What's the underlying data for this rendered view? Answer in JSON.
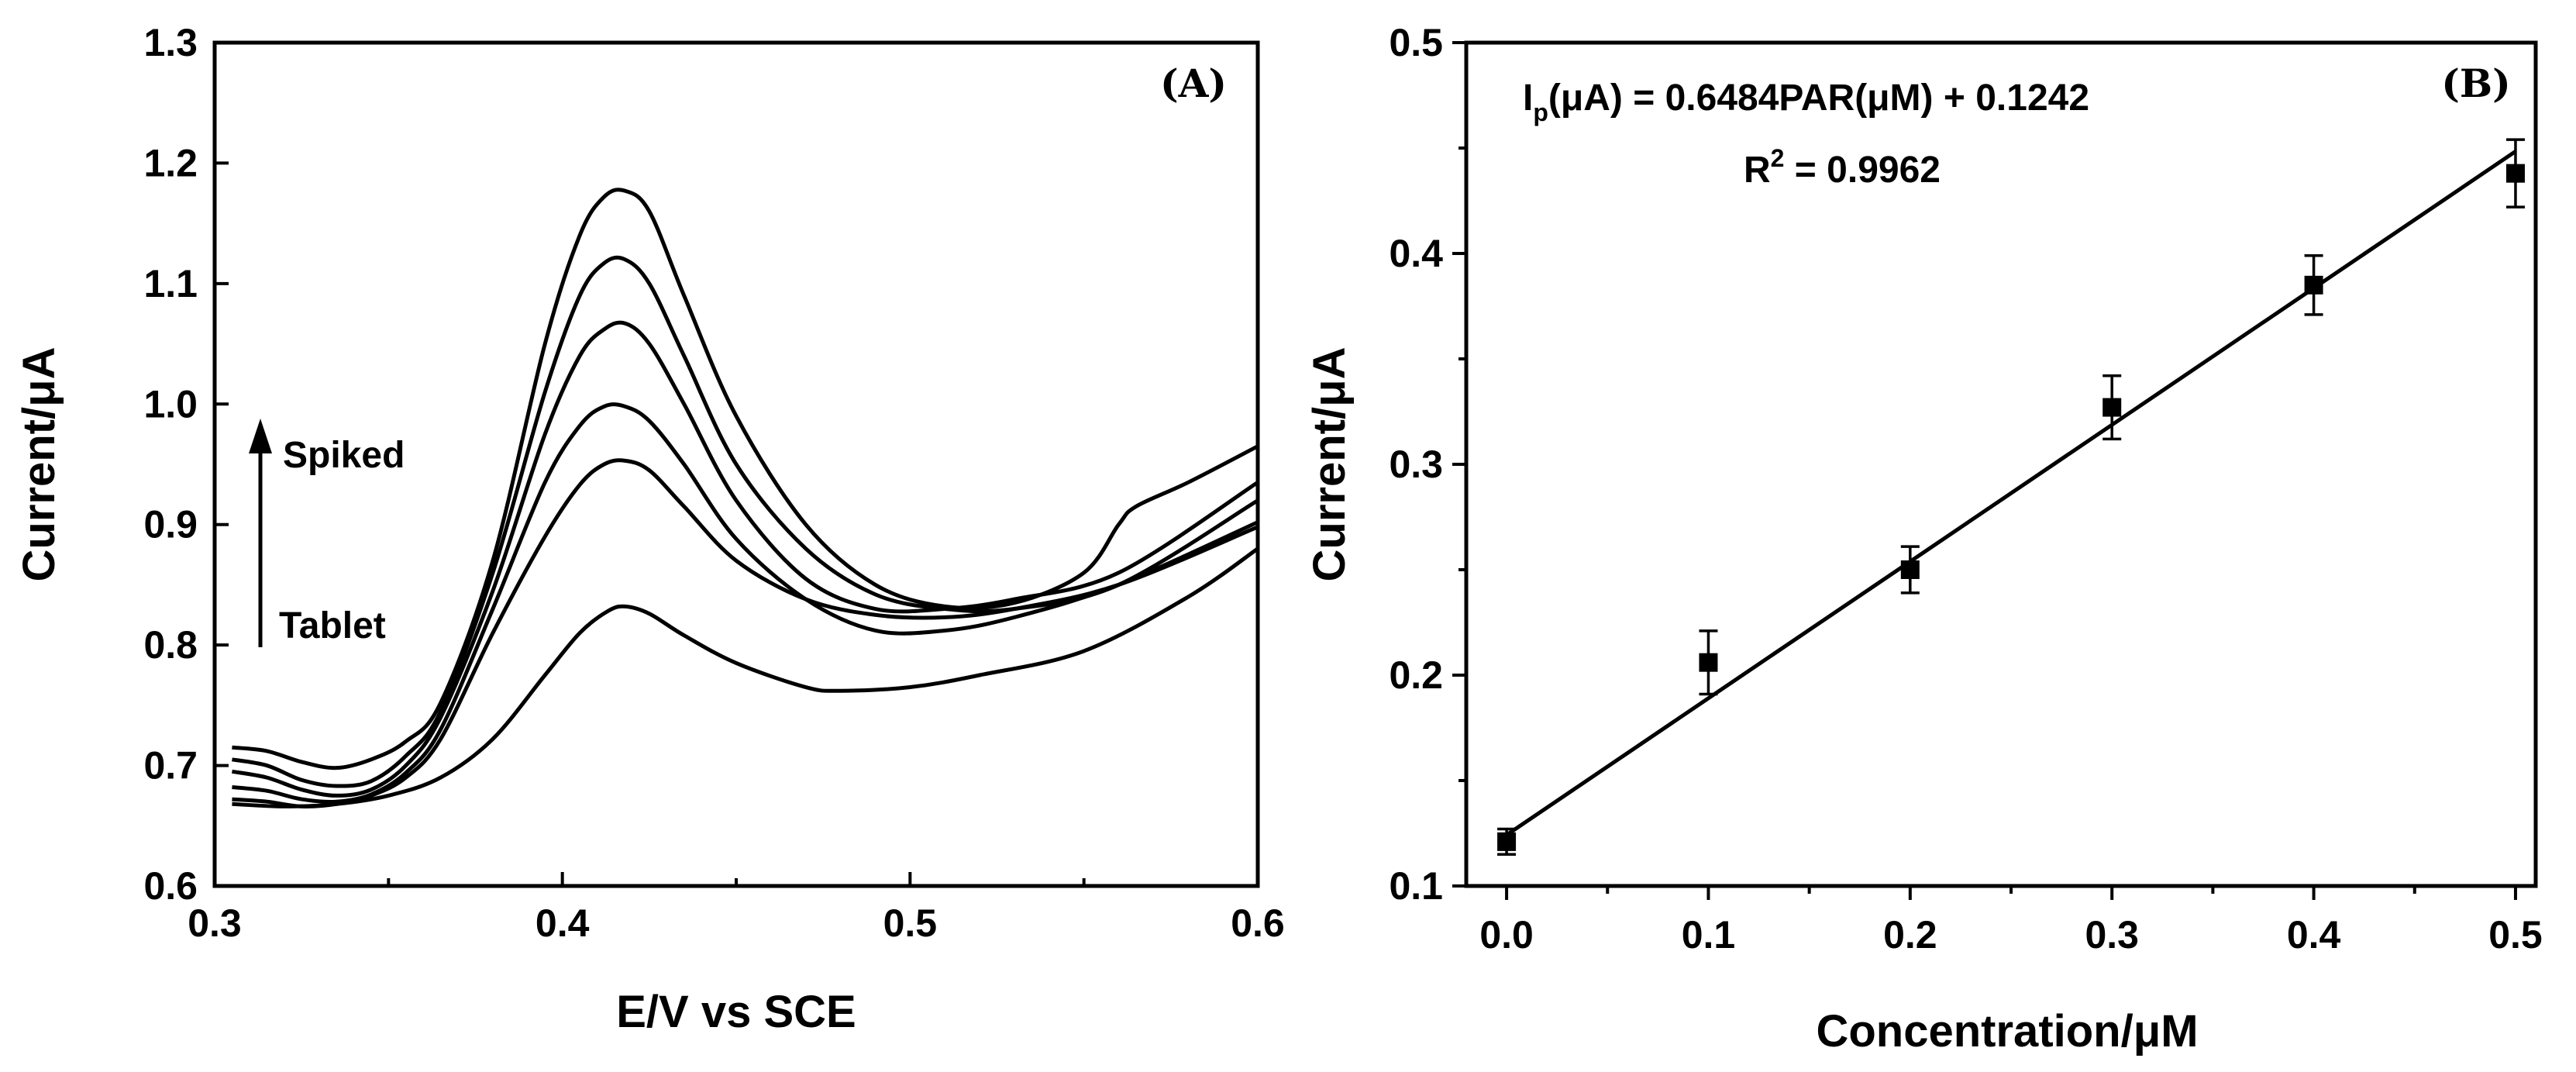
{
  "chart_data": [
    {
      "type": "line",
      "panel_label": "(A)",
      "xlabel": "E/V vs SCE",
      "ylabel": "Current/μA",
      "xlim": [
        0.3,
        0.6
      ],
      "ylim": [
        0.6,
        1.3
      ],
      "xticks": [
        "0.3",
        "0.4",
        "0.5",
        "0.6"
      ],
      "yticks": [
        "0.6",
        "0.7",
        "0.8",
        "0.9",
        "1.0",
        "1.1",
        "1.2",
        "1.3"
      ],
      "annotations": {
        "top": "Spiked",
        "bottom": "Tablet"
      },
      "series": [
        {
          "name": "Tablet",
          "x": [
            0.305,
            0.32,
            0.335,
            0.35,
            0.365,
            0.38,
            0.395,
            0.405,
            0.413,
            0.418,
            0.425,
            0.435,
            0.45,
            0.47,
            0.48,
            0.5,
            0.52,
            0.55,
            0.58,
            0.6
          ],
          "y": [
            0.668,
            0.666,
            0.668,
            0.675,
            0.69,
            0.722,
            0.775,
            0.81,
            0.828,
            0.832,
            0.826,
            0.808,
            0.785,
            0.765,
            0.762,
            0.765,
            0.775,
            0.795,
            0.84,
            0.88
          ]
        },
        {
          "name": "Spiked 1",
          "x": [
            0.305,
            0.315,
            0.325,
            0.335,
            0.345,
            0.355,
            0.365,
            0.38,
            0.395,
            0.405,
            0.412,
            0.418,
            0.425,
            0.435,
            0.45,
            0.47,
            0.49,
            0.51,
            0.53,
            0.56,
            0.6
          ],
          "y": [
            0.672,
            0.67,
            0.666,
            0.668,
            0.675,
            0.69,
            0.722,
            0.81,
            0.89,
            0.933,
            0.95,
            0.953,
            0.945,
            0.915,
            0.87,
            0.838,
            0.825,
            0.823,
            0.83,
            0.85,
            0.898
          ]
        },
        {
          "name": "Spiked 2",
          "x": [
            0.305,
            0.315,
            0.325,
            0.335,
            0.345,
            0.355,
            0.365,
            0.38,
            0.395,
            0.405,
            0.412,
            0.418,
            0.425,
            0.435,
            0.45,
            0.47,
            0.49,
            0.51,
            0.53,
            0.56,
            0.6
          ],
          "y": [
            0.682,
            0.679,
            0.672,
            0.67,
            0.676,
            0.694,
            0.73,
            0.83,
            0.935,
            0.982,
            0.998,
            0.998,
            0.986,
            0.95,
            0.888,
            0.838,
            0.812,
            0.812,
            0.823,
            0.85,
            0.902
          ]
        },
        {
          "name": "Spiked 3",
          "x": [
            0.305,
            0.315,
            0.325,
            0.335,
            0.345,
            0.355,
            0.365,
            0.38,
            0.395,
            0.405,
            0.412,
            0.418,
            0.425,
            0.435,
            0.45,
            0.47,
            0.49,
            0.51,
            0.53,
            0.56,
            0.6
          ],
          "y": [
            0.695,
            0.69,
            0.68,
            0.675,
            0.68,
            0.7,
            0.74,
            0.845,
            0.975,
            1.04,
            1.062,
            1.067,
            1.05,
            1.0,
            0.92,
            0.855,
            0.83,
            0.83,
            0.838,
            0.86,
            0.935
          ]
        },
        {
          "name": "Spiked 4",
          "x": [
            0.305,
            0.315,
            0.325,
            0.335,
            0.345,
            0.355,
            0.365,
            0.38,
            0.395,
            0.405,
            0.412,
            0.418,
            0.425,
            0.435,
            0.45,
            0.47,
            0.49,
            0.51,
            0.53,
            0.56,
            0.6
          ],
          "y": [
            0.705,
            0.7,
            0.688,
            0.683,
            0.687,
            0.708,
            0.745,
            0.86,
            1.01,
            1.09,
            1.117,
            1.12,
            1.1,
            1.04,
            0.95,
            0.88,
            0.842,
            0.83,
            0.83,
            0.85,
            0.92
          ]
        },
        {
          "name": "Spiked 5",
          "x": [
            0.305,
            0.315,
            0.325,
            0.335,
            0.345,
            0.355,
            0.365,
            0.38,
            0.395,
            0.405,
            0.412,
            0.418,
            0.425,
            0.435,
            0.45,
            0.47,
            0.49,
            0.51,
            0.53,
            0.55,
            0.56,
            0.565,
            0.58,
            0.6
          ],
          "y": [
            0.715,
            0.712,
            0.703,
            0.698,
            0.705,
            0.72,
            0.752,
            0.87,
            1.05,
            1.14,
            1.172,
            1.177,
            1.16,
            1.09,
            0.99,
            0.9,
            0.85,
            0.832,
            0.835,
            0.86,
            0.9,
            0.915,
            0.935,
            0.965
          ]
        }
      ]
    },
    {
      "type": "scatter",
      "panel_label": "(B)",
      "xlabel": "Concentration/μM",
      "ylabel": "Current/μA",
      "xlim": [
        -0.02,
        0.51
      ],
      "ylim": [
        0.1,
        0.5
      ],
      "xticks": [
        "0.0",
        "0.1",
        "0.2",
        "0.3",
        "0.4",
        "0.5"
      ],
      "yticks": [
        "0.1",
        "0.2",
        "0.3",
        "0.4",
        "0.5"
      ],
      "x": [
        0.0,
        0.1,
        0.2,
        0.3,
        0.4,
        0.5
      ],
      "y": [
        0.121,
        0.206,
        0.25,
        0.327,
        0.385,
        0.438
      ],
      "error": [
        0.006,
        0.015,
        0.011,
        0.015,
        0.014,
        0.016
      ],
      "fit": {
        "slope": 0.6484,
        "intercept": 0.1242
      },
      "equation": {
        "I": "I",
        "p": "p",
        "rest1": "(μA) = 0.6484PAR(μM) + 0.1242",
        "R": "R",
        "sup": "2",
        "rest2": " = 0.9962"
      }
    }
  ]
}
